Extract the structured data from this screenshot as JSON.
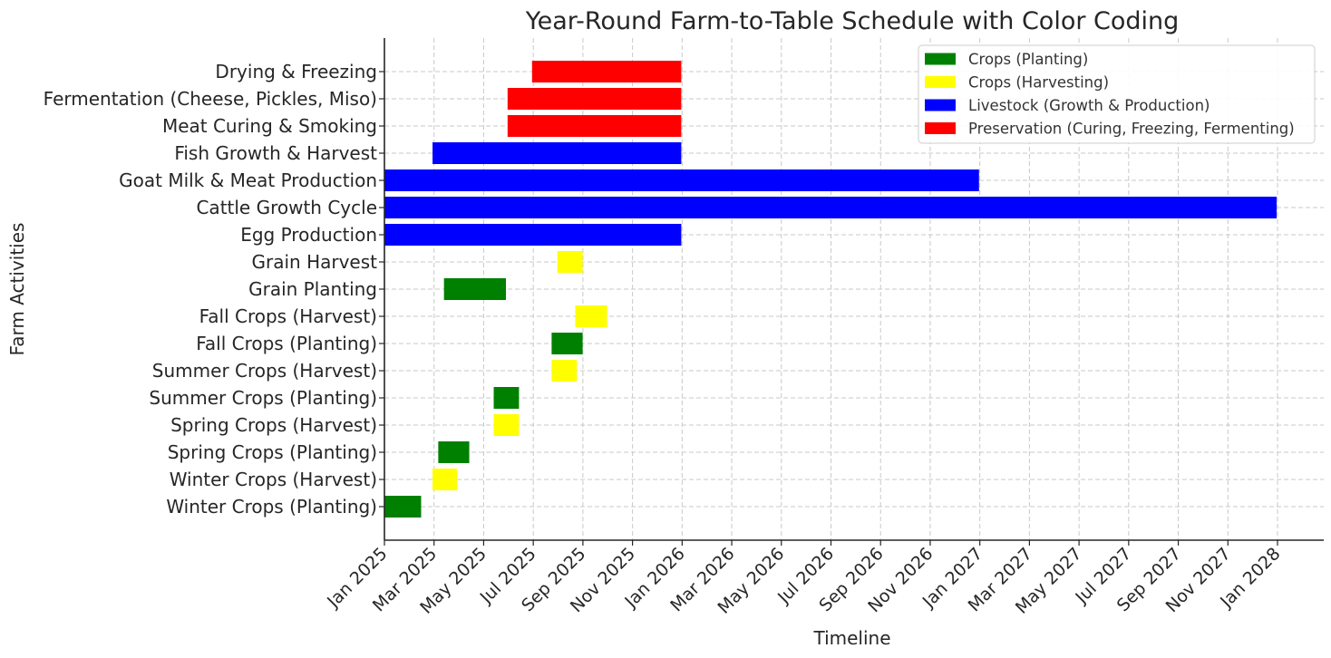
{
  "chart_data": {
    "type": "gantt",
    "title": "Year-Round Farm-to-Table Schedule with Color Coding",
    "xlabel": "Timeline",
    "ylabel": "Farm Activities",
    "grid": true,
    "legend_position": "top-right",
    "x_ticks": [
      "Jan 2025",
      "Mar 2025",
      "May 2025",
      "Jul 2025",
      "Sep 2025",
      "Nov 2025",
      "Jan 2026",
      "Mar 2026",
      "May 2026",
      "Jul 2026",
      "Sep 2026",
      "Nov 2026",
      "Jan 2027",
      "Mar 2027",
      "May 2027",
      "Jul 2027",
      "Sep 2027",
      "Nov 2027",
      "Jan 2028"
    ],
    "categories_colors": {
      "Crops (Planting)": "#008000",
      "Crops (Harvesting)": "#ffff00",
      "Livestock (Growth & Production)": "#0000ff",
      "Preservation (Curing, Freezing, Fermenting)": "#ff0000"
    },
    "legend": [
      {
        "label": "Crops (Planting)",
        "color": "#008000"
      },
      {
        "label": "Crops (Harvesting)",
        "color": "#ffff00"
      },
      {
        "label": "Livestock (Growth & Production)",
        "color": "#0000ff"
      },
      {
        "label": "Preservation (Curing, Freezing, Fermenting)",
        "color": "#ff0000"
      }
    ],
    "tasks": [
      {
        "name": "Winter Crops (Planting)",
        "start": "2025-01-01",
        "end": "2025-02-15",
        "category": "Crops (Planting)"
      },
      {
        "name": "Winter Crops (Harvest)",
        "start": "2025-03-01",
        "end": "2025-03-31",
        "category": "Crops (Harvesting)"
      },
      {
        "name": "Spring Crops (Planting)",
        "start": "2025-03-08",
        "end": "2025-04-15",
        "category": "Crops (Planting)"
      },
      {
        "name": "Spring Crops (Harvest)",
        "start": "2025-05-15",
        "end": "2025-06-15",
        "category": "Crops (Harvesting)"
      },
      {
        "name": "Summer Crops (Planting)",
        "start": "2025-05-15",
        "end": "2025-06-15",
        "category": "Crops (Planting)"
      },
      {
        "name": "Summer Crops (Harvest)",
        "start": "2025-07-25",
        "end": "2025-08-25",
        "category": "Crops (Harvesting)"
      },
      {
        "name": "Fall Crops (Planting)",
        "start": "2025-07-25",
        "end": "2025-09-01",
        "category": "Crops (Planting)"
      },
      {
        "name": "Fall Crops (Harvest)",
        "start": "2025-08-23",
        "end": "2025-10-01",
        "category": "Crops (Harvesting)"
      },
      {
        "name": "Grain Planting",
        "start": "2025-03-15",
        "end": "2025-05-30",
        "category": "Crops (Planting)"
      },
      {
        "name": "Grain Harvest",
        "start": "2025-08-01",
        "end": "2025-09-01",
        "category": "Crops (Harvesting)"
      },
      {
        "name": "Egg Production",
        "start": "2025-01-01",
        "end": "2025-12-31",
        "category": "Livestock (Growth & Production)"
      },
      {
        "name": "Cattle Growth Cycle",
        "start": "2025-01-01",
        "end": "2027-12-31",
        "category": "Livestock (Growth & Production)"
      },
      {
        "name": "Goat Milk & Meat Production",
        "start": "2025-01-01",
        "end": "2026-12-31",
        "category": "Livestock (Growth & Production)"
      },
      {
        "name": "Fish Growth & Harvest",
        "start": "2025-03-01",
        "end": "2025-12-31",
        "category": "Livestock (Growth & Production)"
      },
      {
        "name": "Meat Curing & Smoking",
        "start": "2025-06-01",
        "end": "2025-12-31",
        "category": "Preservation (Curing, Freezing, Fermenting)"
      },
      {
        "name": "Fermentation (Cheese, Pickles, Miso)",
        "start": "2025-06-01",
        "end": "2025-12-31",
        "category": "Preservation (Curing, Freezing, Fermenting)"
      },
      {
        "name": "Drying & Freezing",
        "start": "2025-07-01",
        "end": "2025-12-31",
        "category": "Preservation (Curing, Freezing, Fermenting)"
      }
    ]
  }
}
